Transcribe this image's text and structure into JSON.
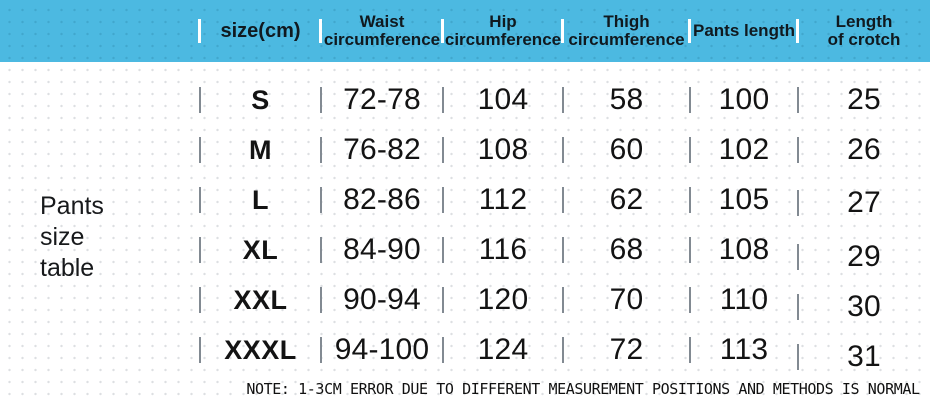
{
  "side_label": {
    "lines": [
      "Pants",
      "size",
      "table"
    ]
  },
  "chart_data": {
    "type": "table",
    "title": "Pants size table",
    "unit": "cm",
    "columns": [
      "size(cm)",
      "Waist circumference",
      "Hip circumference",
      "Thigh circumference",
      "Pants length",
      "Length of crotch"
    ],
    "header_lines": [
      {
        "line1": "size(cm)",
        "line2": ""
      },
      {
        "line1": "Waist",
        "line2": "circumference"
      },
      {
        "line1": "Hip",
        "line2": "circumference"
      },
      {
        "line1": "Thigh",
        "line2": "circumference"
      },
      {
        "line1": "Pants length",
        "line2": ""
      },
      {
        "line1": "Length",
        "line2": "of crotch"
      }
    ],
    "rows": [
      {
        "size": "S",
        "waist": "72-78",
        "hip": "104",
        "thigh": "58",
        "pants_length": "100",
        "crotch": "25"
      },
      {
        "size": "M",
        "waist": "76-82",
        "hip": "108",
        "thigh": "60",
        "pants_length": "102",
        "crotch": "26"
      },
      {
        "size": "L",
        "waist": "82-86",
        "hip": "112",
        "thigh": "62",
        "pants_length": "105",
        "crotch": "27"
      },
      {
        "size": "XL",
        "waist": "84-90",
        "hip": "116",
        "thigh": "68",
        "pants_length": "108",
        "crotch": "29"
      },
      {
        "size": "XXL",
        "waist": "90-94",
        "hip": "120",
        "thigh": "70",
        "pants_length": "110",
        "crotch": "30"
      },
      {
        "size": "XXXL",
        "waist": "94-100",
        "hip": "124",
        "thigh": "72",
        "pants_length": "113",
        "crotch": "31"
      }
    ],
    "note": "NOTE: 1-3CM ERROR DUE TO DIFFERENT MEASUREMENT POSITIONS AND METHODS IS NORMAL"
  },
  "colors": {
    "header_bg": "#4cb9e1",
    "header_separator": "#ffffff",
    "body_separator": "#828a92",
    "text": "#131313",
    "dot_pattern": "#dddfe2"
  }
}
